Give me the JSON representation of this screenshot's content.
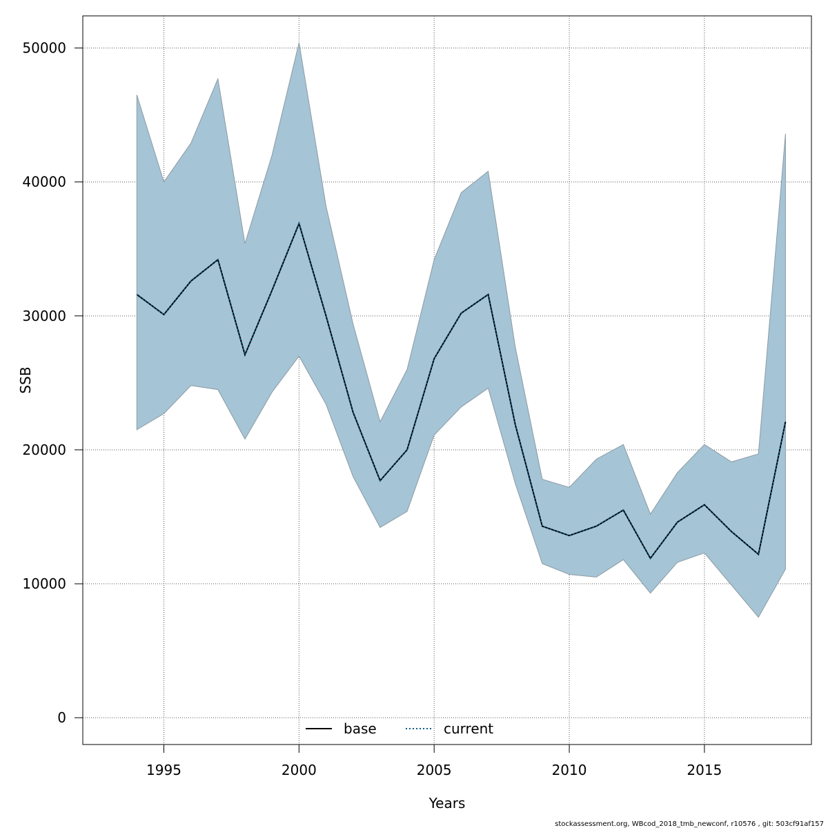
{
  "chart_data": {
    "type": "line",
    "title": "",
    "xlabel": "Years",
    "ylabel": "SSB",
    "xlim": [
      1992,
      2018.96
    ],
    "ylim": [
      -2000,
      52400
    ],
    "x_ticks": [
      1995,
      2000,
      2005,
      2010,
      2015
    ],
    "y_ticks": [
      0,
      10000,
      20000,
      30000,
      40000,
      50000
    ],
    "grid": true,
    "legend": {
      "placement": "bottom",
      "entries": [
        "base",
        "current"
      ]
    },
    "x": [
      1994,
      1995,
      1996,
      1997,
      1998,
      1999,
      2000,
      2001,
      2002,
      2003,
      2004,
      2005,
      2006,
      2007,
      2008,
      2009,
      2010,
      2011,
      2012,
      2013,
      2014,
      2015,
      2016,
      2017,
      2018
    ],
    "series": [
      {
        "name": "base",
        "style": "solid",
        "color": "#000000",
        "values": [
          31600,
          30100,
          32600,
          34200,
          27100,
          31900,
          36900,
          30000,
          22800,
          17700,
          20000,
          26800,
          30200,
          31600,
          21900,
          14300,
          13600,
          14300,
          15500,
          11900,
          14600,
          15900,
          13900,
          12200,
          22100
        ]
      },
      {
        "name": "current",
        "style": "dotted",
        "color": "#0b5a8a",
        "values": [
          31600,
          30100,
          32600,
          34200,
          27100,
          31900,
          36900,
          30000,
          22800,
          17700,
          20000,
          26800,
          30200,
          31600,
          21900,
          14300,
          13600,
          14300,
          15500,
          11900,
          14600,
          15900,
          13900,
          12200,
          22100
        ]
      }
    ],
    "band": {
      "color": "#a5c4d5",
      "lower": [
        21500,
        22700,
        24800,
        24500,
        20800,
        24300,
        27000,
        23400,
        18000,
        14200,
        15400,
        21100,
        23200,
        24600,
        17500,
        11500,
        10700,
        10500,
        11800,
        9300,
        11600,
        12300,
        9900,
        7500,
        11100
      ],
      "upper": [
        46500,
        40000,
        42900,
        47700,
        35400,
        42000,
        50400,
        38200,
        29400,
        22100,
        26000,
        34200,
        39200,
        40800,
        27700,
        17800,
        17200,
        19300,
        20400,
        15200,
        18300,
        20400,
        19100,
        19700,
        43600
      ]
    }
  },
  "footnote": "stockassessment.org, WBcod_2018_tmb_newconf, r10576 , git: 503cf91af157"
}
